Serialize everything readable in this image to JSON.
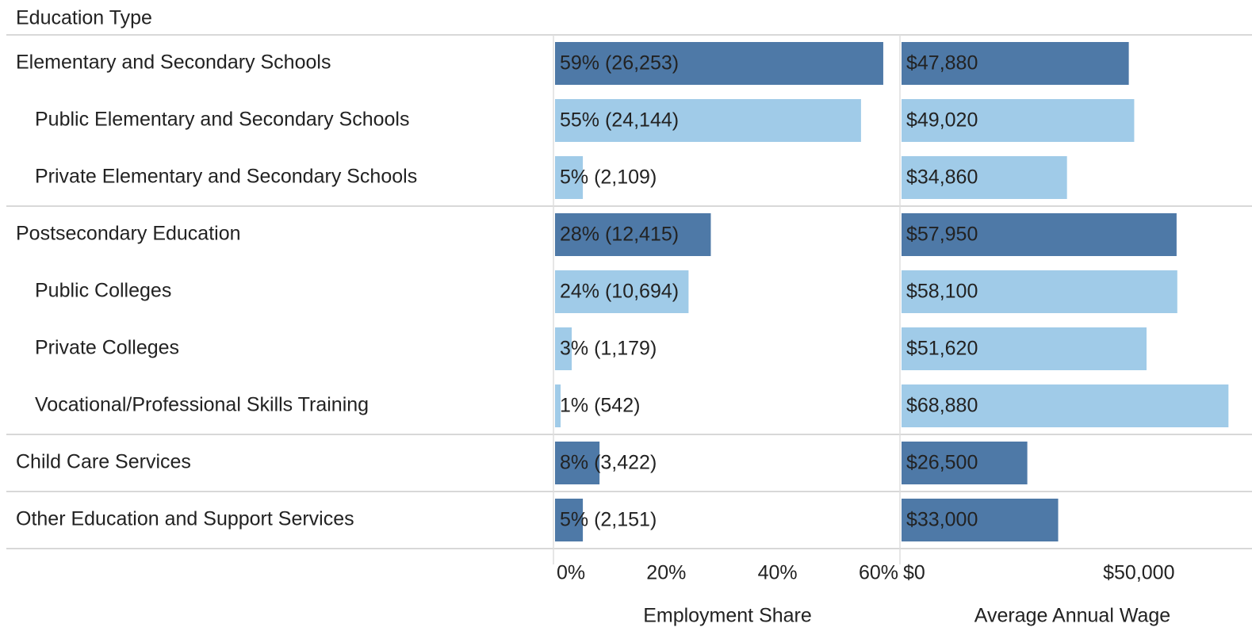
{
  "chart_data": {
    "type": "bar",
    "orientation": "horizontal",
    "category_label": "Education Type",
    "categories": [
      "Elementary and Secondary Schools",
      "Public Elementary and Secondary Schools",
      "Private Elementary and Secondary Schools",
      "Postsecondary Education",
      "Public Colleges",
      "Private Colleges",
      "Vocational/Professional Skills Training",
      "Child Care Services",
      "Other Education and Support Services"
    ],
    "levels": [
      0,
      1,
      1,
      0,
      1,
      1,
      1,
      0,
      0
    ],
    "level_colors": [
      "#4e79a7",
      "#a0cbe8"
    ],
    "series": [
      {
        "name": "Employment Share",
        "values": [
          59,
          55,
          5,
          28,
          24,
          3,
          1,
          8,
          5
        ],
        "value_labels": [
          "59% (26,253)",
          "55% (24,144)",
          "5% (2,109)",
          "28% (12,415)",
          "24% (10,694)",
          "3% (1,179)",
          "1% (542)",
          "8% (3,422)",
          "5% (2,151)"
        ],
        "xlim": [
          0,
          62
        ],
        "xticks": [
          {
            "value": 0,
            "label": "0%"
          },
          {
            "value": 20,
            "label": "20%"
          },
          {
            "value": 40,
            "label": "40%"
          },
          {
            "value": 60,
            "label": "60%"
          }
        ]
      },
      {
        "name": "Average Annual Wage",
        "values": [
          47880,
          49020,
          34860,
          57950,
          58100,
          51620,
          68880,
          26500,
          33000
        ],
        "value_labels": [
          "$47,880",
          "$49,020",
          "$34,860",
          "$57,950",
          "$58,100",
          "$51,620",
          "$68,880",
          "$26,500",
          "$33,000"
        ],
        "xlim": [
          0,
          72000
        ],
        "xticks": [
          {
            "value": 0,
            "label": "$0"
          },
          {
            "value": 50000,
            "label": "$50,000"
          }
        ]
      }
    ]
  }
}
